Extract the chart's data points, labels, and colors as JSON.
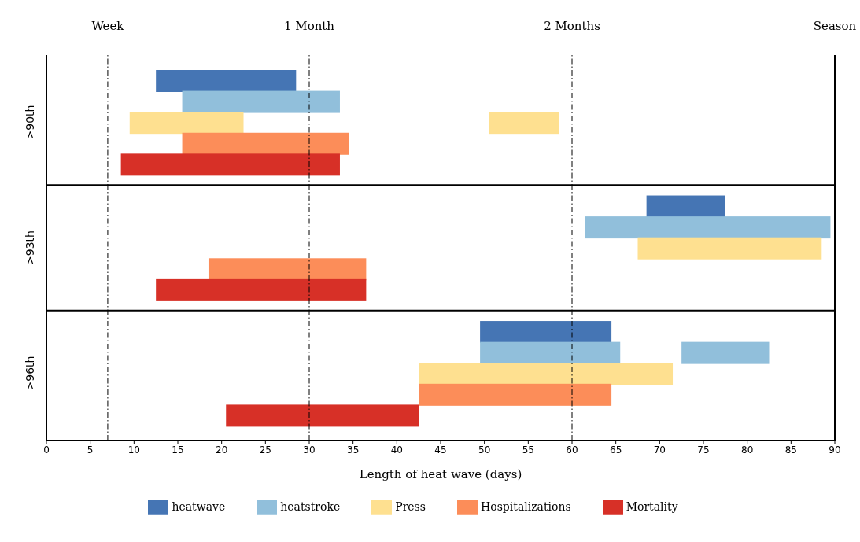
{
  "chart_data": {
    "type": "bar",
    "orientation": "horizontal",
    "xlabel": "Length of heat wave (days)",
    "categories": [
      null,
      null,
      ">90th",
      null,
      null,
      null,
      null,
      null,
      ">93th",
      null,
      null,
      null,
      null,
      null,
      ">96th",
      null,
      null
    ],
    "xlim": [
      0,
      90
    ],
    "xticks": [
      0,
      5,
      10,
      15,
      20,
      25,
      30,
      35,
      40,
      45,
      50,
      55,
      60,
      65,
      70,
      75,
      80,
      85,
      90
    ],
    "legend": "bottom",
    "ref_lines": [
      {
        "axis": "x",
        "value": 7,
        "label": "Week",
        "color": "#000000"
      },
      {
        "axis": "x",
        "value": 30,
        "label": "1 Month",
        "color": "#000000"
      },
      {
        "axis": "x",
        "value": 60,
        "label": "2 Months",
        "color": "#000000"
      }
    ],
    "annotations": [
      "Season"
    ],
    "series": [
      {
        "name": "heatwave",
        "color": "#4575b4",
        "values": [
          16,
          null,
          null,
          null,
          null,
          null,
          9,
          null,
          null,
          null,
          null,
          null,
          15,
          null,
          null,
          null,
          null
        ],
        "base": [
          12.5,
          null,
          null,
          null,
          null,
          null,
          68.5,
          null,
          null,
          null,
          null,
          null,
          49.5,
          null,
          null,
          null,
          null
        ]
      },
      {
        "name": "heatstroke",
        "color": "#91bfdb",
        "values": [
          null,
          18,
          null,
          null,
          null,
          null,
          null,
          28,
          null,
          null,
          null,
          null,
          null,
          16,
          null,
          null,
          null
        ],
        "base": [
          null,
          15.5,
          null,
          null,
          null,
          null,
          null,
          61.5,
          null,
          null,
          null,
          null,
          null,
          49.5,
          null,
          null,
          null
        ]
      },
      {
        "color": "#91bfdb",
        "values": [
          null,
          null,
          null,
          null,
          null,
          null,
          null,
          null,
          null,
          null,
          null,
          null,
          null,
          10,
          null,
          null,
          null
        ],
        "base": [
          null,
          null,
          null,
          null,
          null,
          null,
          null,
          null,
          null,
          null,
          null,
          null,
          null,
          72.5,
          null,
          null,
          null
        ]
      },
      {
        "name": "Press",
        "color": "#fee090",
        "values": [
          null,
          null,
          13,
          null,
          null,
          null,
          null,
          null,
          21,
          null,
          null,
          null,
          null,
          null,
          29,
          null,
          null
        ],
        "base": [
          null,
          null,
          9.5,
          null,
          null,
          null,
          null,
          null,
          67.5,
          null,
          null,
          null,
          null,
          null,
          42.5,
          null,
          null
        ]
      },
      {
        "color": "#fee090",
        "values": [
          null,
          null,
          8,
          null,
          null,
          null,
          null,
          null,
          null,
          null,
          null,
          null,
          null,
          null,
          null,
          null,
          null
        ],
        "base": [
          null,
          null,
          50.5,
          null,
          null,
          null,
          null,
          null,
          null,
          null,
          null,
          null,
          null,
          null,
          null,
          null,
          null
        ]
      },
      {
        "name": "Hospitalizations",
        "color": "#fc8d59",
        "values": [
          null,
          null,
          null,
          19,
          null,
          null,
          null,
          null,
          null,
          18,
          null,
          null,
          null,
          null,
          null,
          22,
          null
        ],
        "base": [
          null,
          null,
          null,
          15.5,
          null,
          null,
          null,
          null,
          null,
          18.5,
          null,
          null,
          null,
          null,
          null,
          42.5,
          null
        ]
      },
      {
        "name": "Mortality",
        "color": "#d73027",
        "values": [
          null,
          null,
          null,
          null,
          25,
          null,
          null,
          null,
          null,
          null,
          24,
          null,
          null,
          null,
          null,
          null,
          22
        ],
        "base": [
          null,
          null,
          null,
          null,
          8.5,
          null,
          null,
          null,
          null,
          null,
          12.5,
          null,
          null,
          null,
          null,
          null,
          20.5
        ]
      }
    ]
  }
}
